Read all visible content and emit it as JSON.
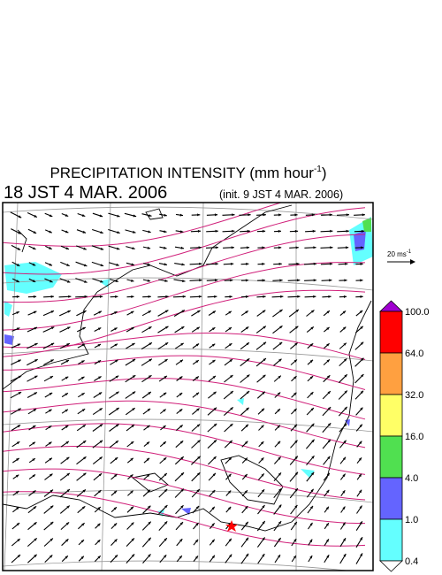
{
  "header": {
    "title": {
      "text": "PRECIPITATION INTENSITY (mm hour",
      "superscript": "-1",
      "close": ")"
    },
    "valid_time": "18 JST 4 MAR. 2006",
    "init_time": "(init. 9 JST 4 MAR. 2006)"
  },
  "wind_key": {
    "label": "20 ms",
    "superscript": "-1"
  },
  "colorbar": {
    "labels": [
      "100.0",
      "64.0",
      "32.0",
      "16.0",
      "4.0",
      "1.0",
      "0.4"
    ],
    "colors": [
      "#a000d0",
      "#ff0000",
      "#ffa040",
      "#ffff66",
      "#50e050",
      "#6464ff",
      "#64ffff",
      "#ffffff"
    ]
  }
}
